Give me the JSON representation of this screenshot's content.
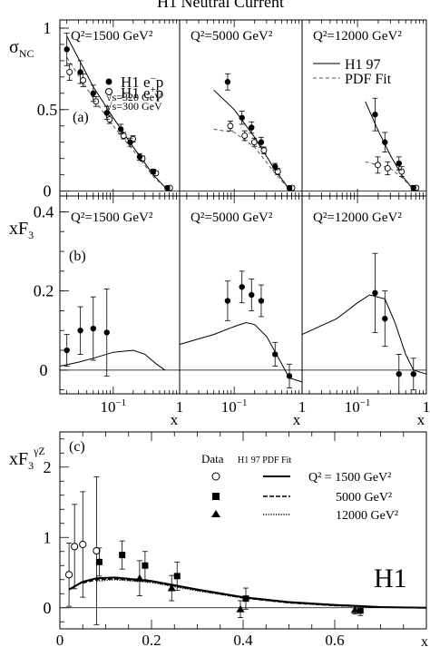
{
  "figure_title": "H1 Neutral Current",
  "panel_labels": {
    "a": "(a)",
    "b": "(b)",
    "c": "(c)"
  },
  "brand_label": "H1",
  "chart_data": [
    {
      "id": "sigma_nc",
      "type": "scatter",
      "ylabel": "σ_NC",
      "xscale": "log",
      "xlim": [
        0.0157,
        1
      ],
      "ylim": [
        -0.03,
        1.05
      ],
      "yticks": [
        {
          "v": 0,
          "t": "0"
        },
        {
          "v": 0.5,
          "t": "0.5"
        },
        {
          "v": 1,
          "t": "1"
        }
      ],
      "panels": [
        {
          "q2": "Q²=1500 GeV²",
          "emin": {
            "x": [
              0.02,
              0.032,
              0.05,
              0.08,
              0.13,
              0.18,
              0.25,
              0.4,
              0.65
            ],
            "y": [
              0.87,
              0.73,
              0.6,
              0.48,
              0.38,
              0.3,
              0.21,
              0.12,
              0.02
            ],
            "err": [
              0.1,
              0.07,
              0.05,
              0.04,
              0.03,
              0.025,
              0.02,
              0.015,
              0.01
            ]
          },
          "eplus": {
            "x": [
              0.02,
              0.032,
              0.05,
              0.08,
              0.13,
              0.18,
              0.25,
              0.4,
              0.65
            ],
            "y": [
              0.73,
              0.68,
              0.55,
              0.44,
              0.34,
              0.32,
              0.2,
              0.11,
              0.02
            ],
            "err": [
              0.05,
              0.04,
              0.03,
              0.025,
              0.02,
              0.02,
              0.015,
              0.012,
              0.008
            ]
          },
          "h1fit": {
            "x": [
              0.02,
              0.05,
              0.1,
              0.2,
              0.4,
              0.65
            ],
            "y": [
              0.95,
              0.64,
              0.45,
              0.27,
              0.1,
              0.01
            ]
          },
          "pdffit": {
            "x": [
              0.02,
              0.05,
              0.1,
              0.2,
              0.4,
              0.65
            ],
            "y": [
              0.82,
              0.57,
              0.4,
              0.25,
              0.09,
              0.01
            ]
          }
        },
        {
          "q2": "Q²=5000 GeV²",
          "emin": {
            "x": [
              0.08,
              0.13,
              0.18,
              0.25,
              0.4,
              0.65
            ],
            "y": [
              0.67,
              0.45,
              0.39,
              0.3,
              0.15,
              0.02
            ],
            "err": [
              0.05,
              0.04,
              0.035,
              0.03,
              0.02,
              0.01
            ]
          },
          "eplus": {
            "x": [
              0.08,
              0.13,
              0.18,
              0.25,
              0.4,
              0.65
            ],
            "y": [
              0.4,
              0.34,
              0.3,
              0.25,
              0.12,
              0.02
            ],
            "err": [
              0.03,
              0.03,
              0.025,
              0.02,
              0.02,
              0.01
            ]
          },
          "h1fit": {
            "x": [
              0.05,
              0.1,
              0.2,
              0.4,
              0.65
            ],
            "y": [
              0.62,
              0.5,
              0.33,
              0.13,
              0.01
            ]
          },
          "pdffit": {
            "x": [
              0.05,
              0.1,
              0.2,
              0.4,
              0.65
            ],
            "y": [
              0.38,
              0.36,
              0.27,
              0.11,
              0.01
            ]
          }
        },
        {
          "q2": "Q²=12000 GeV²",
          "emin": {
            "x": [
              0.18,
              0.25,
              0.4,
              0.65
            ],
            "y": [
              0.47,
              0.3,
              0.17,
              0.02
            ],
            "err": [
              0.1,
              0.06,
              0.04,
              0.015
            ]
          },
          "eplus": {
            "x": [
              0.18,
              0.25,
              0.4,
              0.65
            ],
            "y": [
              0.16,
              0.14,
              0.12,
              0.02
            ],
            "err": [
              0.05,
              0.04,
              0.03,
              0.01
            ]
          },
          "h1fit": {
            "x": [
              0.13,
              0.2,
              0.3,
              0.45,
              0.65
            ],
            "y": [
              0.55,
              0.37,
              0.22,
              0.09,
              0.01
            ]
          },
          "pdffit": {
            "x": [
              0.13,
              0.2,
              0.3,
              0.45,
              0.65
            ],
            "y": [
              0.18,
              0.16,
              0.14,
              0.08,
              0.01
            ]
          }
        }
      ],
      "legend": {
        "emin_label": "H1 e⁻p",
        "emin_sub": "√s=320 GeV",
        "eplus_label": "H1 e⁺p",
        "eplus_sub": "√s=300 GeV",
        "h1fit_label": "H1 97",
        "pdffit_label": "PDF Fit"
      }
    },
    {
      "id": "xf3",
      "type": "scatter",
      "ylabel": "xF₃",
      "xscale": "log",
      "xlim": [
        0.0157,
        1
      ],
      "ylim": [
        -0.06,
        0.44
      ],
      "yticks": [
        {
          "v": 0,
          "t": "0"
        },
        {
          "v": 0.2,
          "t": "0.2"
        },
        {
          "v": 0.4,
          "t": "0.4"
        }
      ],
      "xticks": [
        {
          "v": 0.1,
          "t": "10⁻¹"
        },
        {
          "v": 1,
          "t": "1"
        }
      ],
      "xlabel": "x",
      "panels": [
        {
          "q2": "Q²=1500 GeV²",
          "points": {
            "x": [
              0.02,
              0.032,
              0.05,
              0.08
            ],
            "y": [
              0.05,
              0.1,
              0.105,
              0.095
            ],
            "err": [
              0.04,
              0.06,
              0.08,
              0.11
            ]
          },
          "curve": {
            "x": [
              0.0157,
              0.03,
              0.05,
              0.1,
              0.2,
              0.3,
              0.45,
              0.6
            ],
            "y": [
              0.01,
              0.02,
              0.03,
              0.045,
              0.05,
              0.04,
              0.015,
              0.0
            ]
          }
        },
        {
          "q2": "Q²=5000 GeV²",
          "points": {
            "x": [
              0.08,
              0.13,
              0.18,
              0.25,
              0.4,
              0.65
            ],
            "y": [
              0.175,
              0.21,
              0.19,
              0.175,
              0.04,
              -0.015
            ],
            "err": [
              0.05,
              0.04,
              0.04,
              0.04,
              0.03,
              0.03
            ]
          },
          "curve": {
            "x": [
              0.0157,
              0.05,
              0.1,
              0.15,
              0.2,
              0.3,
              0.45,
              0.65,
              1.0
            ],
            "y": [
              0.065,
              0.09,
              0.11,
              0.12,
              0.115,
              0.085,
              0.03,
              -0.02,
              -0.03
            ]
          }
        },
        {
          "q2": "Q²=12000 GeV²",
          "points": {
            "x": [
              0.18,
              0.25,
              0.4,
              0.65
            ],
            "y": [
              0.195,
              0.13,
              -0.01,
              -0.01
            ],
            "err": [
              0.1,
              0.07,
              0.05,
              0.04
            ]
          },
          "curve": {
            "x": [
              0.0157,
              0.05,
              0.1,
              0.15,
              0.25,
              0.35,
              0.5,
              0.65,
              1.0
            ],
            "y": [
              0.09,
              0.13,
              0.17,
              0.19,
              0.18,
              0.12,
              0.04,
              0.0,
              -0.01
            ]
          }
        }
      ]
    },
    {
      "id": "xf3_gz",
      "type": "scatter",
      "ylabel": "xF₃^γZ",
      "xlabel": "x",
      "xlim": [
        0,
        0.8
      ],
      "ylim": [
        -0.3,
        2.5
      ],
      "xticks": [
        {
          "v": 0,
          "t": "0"
        },
        {
          "v": 0.2,
          "t": "0.2"
        },
        {
          "v": 0.4,
          "t": "0.4"
        },
        {
          "v": 0.6,
          "t": "0.6"
        }
      ],
      "yticks": [
        {
          "v": 0,
          "t": "0"
        },
        {
          "v": 1,
          "t": "1"
        },
        {
          "v": 2,
          "t": "2"
        }
      ],
      "legend": {
        "data_header": "Data",
        "fit_header": "H1 97 PDF Fit",
        "entries": [
          "Q² = 1500 GeV²",
          "5000 GeV²",
          "12000 GeV²"
        ]
      },
      "series": [
        {
          "marker": "open-circle",
          "x": [
            0.02,
            0.032,
            0.05,
            0.08
          ],
          "y": [
            0.47,
            0.87,
            0.9,
            0.81
          ],
          "err": [
            0.45,
            0.6,
            0.75,
            1.05
          ]
        },
        {
          "marker": "filled-square",
          "x": [
            0.08,
            0.13,
            0.18,
            0.25,
            0.4,
            0.65
          ],
          "y": [
            0.65,
            0.75,
            0.6,
            0.45,
            0.13,
            -0.04
          ],
          "err": [
            0.2,
            0.2,
            0.2,
            0.2,
            0.15,
            0.07
          ]
        },
        {
          "marker": "filled-triangle",
          "x": [
            0.18,
            0.25,
            0.4,
            0.65
          ],
          "y": [
            0.42,
            0.28,
            -0.02,
            -0.03
          ],
          "err": [
            0.25,
            0.18,
            0.12,
            0.06
          ]
        }
      ],
      "curves": [
        {
          "style": "solid",
          "x": [
            0.02,
            0.05,
            0.08,
            0.12,
            0.2,
            0.3,
            0.4,
            0.5,
            0.6,
            0.7,
            0.8
          ],
          "y": [
            0.26,
            0.37,
            0.42,
            0.43,
            0.38,
            0.26,
            0.15,
            0.08,
            0.04,
            0.01,
            0.0
          ]
        },
        {
          "style": "dashed",
          "x": [
            0.05,
            0.08,
            0.12,
            0.2,
            0.3,
            0.4,
            0.5,
            0.6,
            0.7,
            0.8
          ],
          "y": [
            0.35,
            0.4,
            0.41,
            0.37,
            0.25,
            0.14,
            0.07,
            0.03,
            0.01,
            0.0
          ]
        },
        {
          "style": "dotted",
          "x": [
            0.08,
            0.12,
            0.2,
            0.3,
            0.4,
            0.5,
            0.6,
            0.7,
            0.8
          ],
          "y": [
            0.38,
            0.4,
            0.36,
            0.24,
            0.14,
            0.07,
            0.03,
            0.01,
            0.0
          ]
        }
      ]
    }
  ]
}
